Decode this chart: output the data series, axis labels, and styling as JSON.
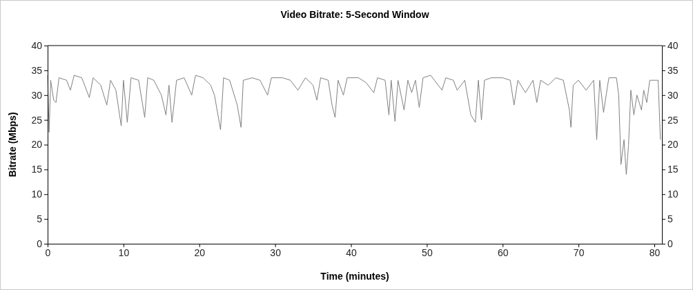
{
  "chart_data": {
    "type": "line",
    "title": "Video Bitrate: 5-Second Window",
    "xlabel": "Time (minutes)",
    "ylabel": "Bitrate (Mbps)",
    "xlim": [
      0,
      81
    ],
    "xticks": [
      0,
      10,
      20,
      30,
      40,
      50,
      60,
      70,
      80
    ],
    "ylim": [
      0,
      40
    ],
    "yticks": [
      0,
      5,
      10,
      15,
      20,
      25,
      30,
      35,
      40
    ],
    "y2lim": [
      0,
      40
    ],
    "y2ticks": [
      0,
      5,
      10,
      15,
      20,
      25,
      30,
      35,
      40
    ],
    "grid": false,
    "marker": "none",
    "line_style": "solid",
    "series": [
      {
        "color": "#808080",
        "x": [
          0,
          0.2,
          0.4,
          0.8,
          1.1,
          1.5,
          2.5,
          3,
          3.5,
          4.5,
          5.5,
          6,
          7,
          7.8,
          8.3,
          9,
          9.7,
          10,
          10.5,
          11,
          12,
          12.8,
          13.2,
          14,
          15,
          15.6,
          16,
          16.4,
          17,
          18,
          19,
          19.5,
          20.5,
          21.5,
          22,
          22.8,
          23.2,
          24,
          25,
          25.5,
          25.8,
          27,
          28,
          29,
          29.5,
          31,
          32,
          33,
          34,
          35,
          35.5,
          36,
          37,
          37.5,
          37.9,
          38.3,
          39,
          39.5,
          41,
          42,
          43,
          43.5,
          44.5,
          45,
          45.3,
          45.8,
          46.2,
          47,
          47.5,
          48,
          48.5,
          49,
          49.5,
          50.5,
          51,
          52,
          52.5,
          53.5,
          54,
          55,
          55.8,
          56.4,
          56.8,
          57.2,
          57.6,
          58.5,
          60,
          61,
          61.5,
          62,
          63,
          64,
          64.5,
          65,
          66,
          67,
          68,
          68.8,
          69,
          69.3,
          70,
          71,
          72,
          72.4,
          72.8,
          73.3,
          74,
          75,
          75.3,
          75.6,
          76,
          76.3,
          76.6,
          76.9,
          77.3,
          77.7,
          78.3,
          78.6,
          79,
          79.4,
          80.5,
          80.8
        ],
        "values": [
          34,
          22.5,
          33,
          29,
          28.5,
          33.5,
          33,
          31,
          34,
          33.5,
          29.5,
          33.5,
          32,
          28,
          33,
          31,
          23.8,
          33,
          24.5,
          33.5,
          33,
          25.5,
          33.5,
          33,
          30,
          26,
          32,
          24.5,
          33,
          33.5,
          30,
          34,
          33.5,
          32,
          30,
          23,
          33.5,
          33,
          28,
          23.5,
          33,
          33.5,
          33,
          30,
          33.5,
          33.5,
          33,
          31,
          33.5,
          32,
          29,
          33.5,
          33,
          28,
          25.5,
          33,
          30,
          33.5,
          33.5,
          32.5,
          30.5,
          33.5,
          33,
          26,
          33,
          24.7,
          33,
          27,
          33,
          30.5,
          33,
          27.5,
          33.5,
          34,
          33,
          31,
          33.5,
          33,
          31,
          33,
          26,
          24.5,
          33,
          25,
          33,
          33.5,
          33.5,
          33,
          28,
          33,
          30.5,
          33,
          28.5,
          33,
          32,
          33.5,
          33,
          27,
          23.5,
          32,
          33,
          31,
          33,
          21,
          33,
          26.5,
          33.5,
          33.5,
          30,
          16,
          21,
          14,
          20,
          31,
          26,
          30,
          27,
          31,
          28.5,
          33,
          33,
          21
        ]
      }
    ]
  }
}
